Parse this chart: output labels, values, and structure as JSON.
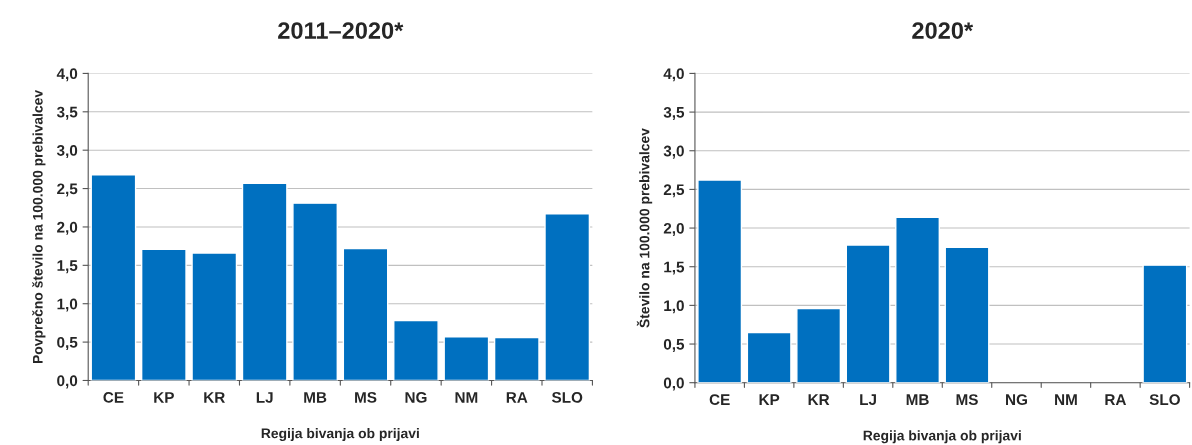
{
  "chart_data": [
    {
      "type": "bar",
      "title": "2011–2020*",
      "xlabel": "Regija bivanja ob prijavi",
      "ylabel": "Povprečno število na 100.000 prebivalcev",
      "categories": [
        "CE",
        "KP",
        "KR",
        "LJ",
        "MB",
        "MS",
        "NG",
        "NM",
        "RA",
        "SLO"
      ],
      "values": [
        2.68,
        1.71,
        1.66,
        2.57,
        2.31,
        1.72,
        0.78,
        0.57,
        0.56,
        2.17
      ],
      "color": "#0070c0",
      "ylim": [
        0,
        4
      ],
      "yticks": [
        {
          "value": 0,
          "label": "0,0"
        },
        {
          "value": 0.5,
          "label": "0,5"
        },
        {
          "value": 1,
          "label": "1,0"
        },
        {
          "value": 1.5,
          "label": "1,5"
        },
        {
          "value": 2,
          "label": "2,0"
        },
        {
          "value": 2.5,
          "label": "2,5"
        },
        {
          "value": 3,
          "label": "3,0"
        },
        {
          "value": 3.5,
          "label": "3,5"
        },
        {
          "value": 4,
          "label": "4,0"
        }
      ],
      "grid": "y",
      "legend": false
    },
    {
      "type": "bar",
      "title": "2020*",
      "xlabel": "Regija bivanja ob prijavi",
      "ylabel": "Število na 100.000 prebivalcev",
      "categories": [
        "CE",
        "KP",
        "KR",
        "LJ",
        "MB",
        "MS",
        "NG",
        "NM",
        "RA",
        "SLO"
      ],
      "values": [
        2.62,
        0.65,
        0.96,
        1.78,
        2.14,
        1.75,
        null,
        null,
        null,
        1.52
      ],
      "color": "#0070c0",
      "ylim": [
        0,
        4
      ],
      "yticks": [
        {
          "value": 0,
          "label": "0,0"
        },
        {
          "value": 0.5,
          "label": "0,5"
        },
        {
          "value": 1,
          "label": "1,0"
        },
        {
          "value": 1.5,
          "label": "1,5"
        },
        {
          "value": 2,
          "label": "2,0"
        },
        {
          "value": 2.5,
          "label": "2,5"
        },
        {
          "value": 3,
          "label": "3,0"
        },
        {
          "value": 3.5,
          "label": "3,5"
        },
        {
          "value": 4,
          "label": "4,0"
        }
      ],
      "grid": "y",
      "legend": false
    }
  ]
}
